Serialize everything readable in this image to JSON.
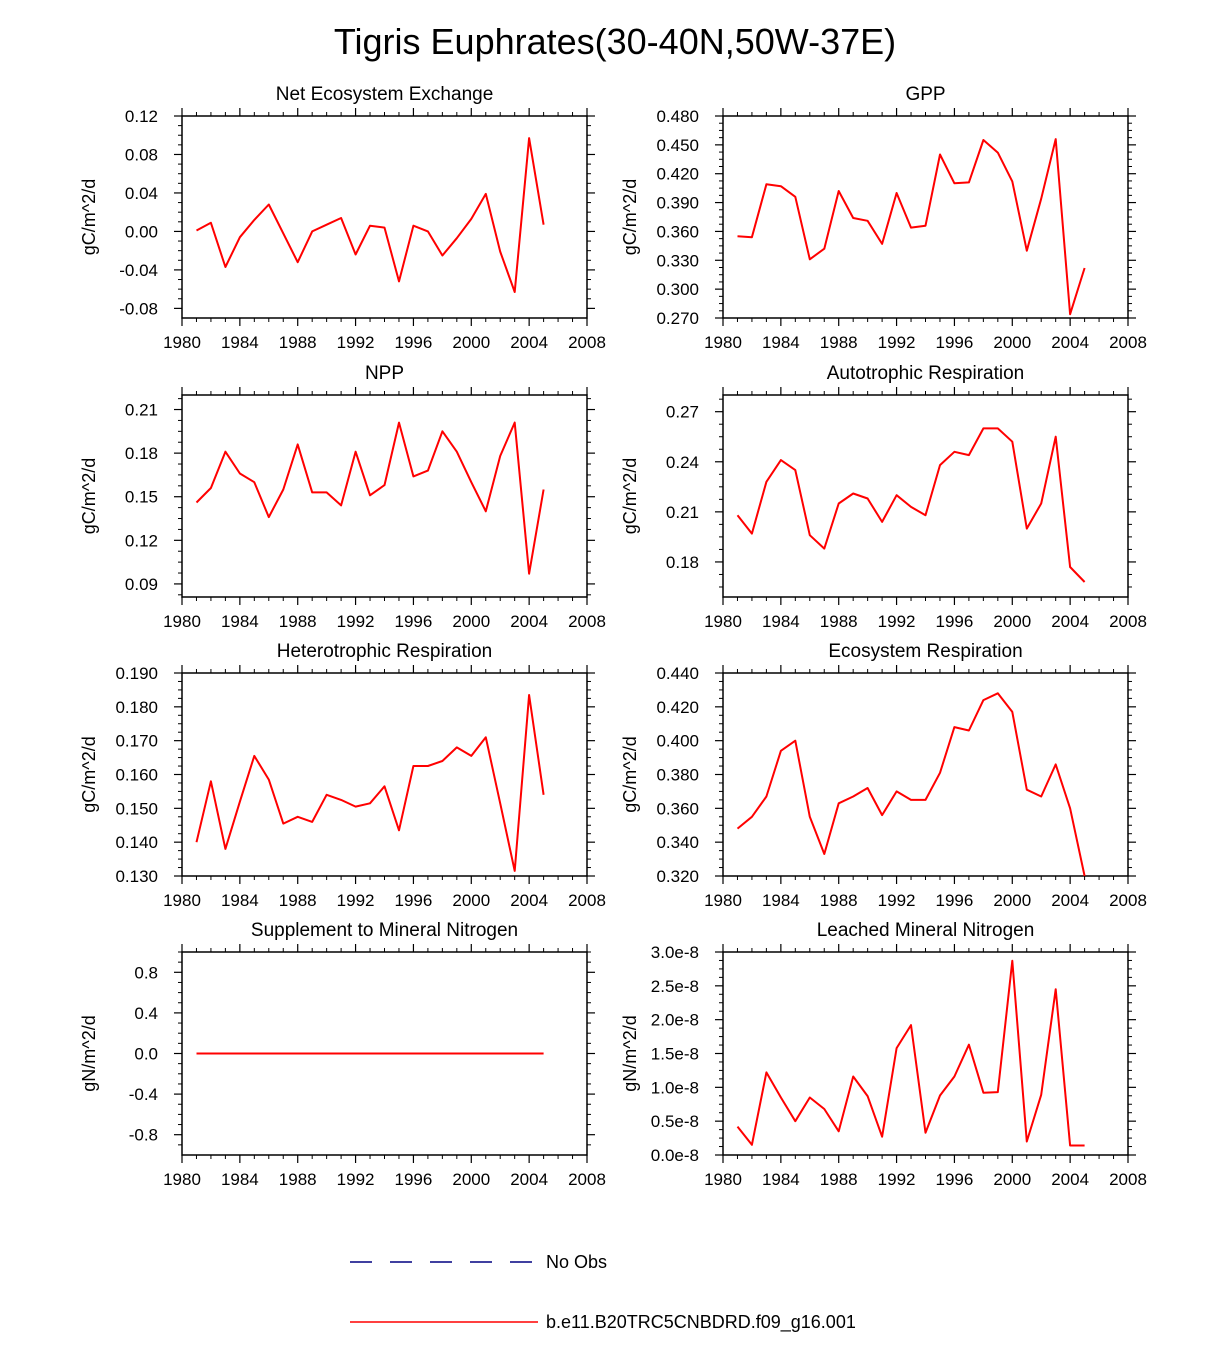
{
  "figure_title": "Tigris Euphrates(30-40N,50W-37E)",
  "legend": [
    {
      "label": "No Obs",
      "color": "#000080",
      "dash": true
    },
    {
      "label": "b.e11.B20TRC5CNBDRD.f09_g16.001",
      "color": "#ff0000",
      "dash": false
    }
  ],
  "chart_data": [
    {
      "type": "line",
      "title": "Net Ecosystem Exchange",
      "ylabel": "gC/m^2/d",
      "xlim": [
        1980,
        2008
      ],
      "xticks": [
        1980,
        1984,
        1988,
        1992,
        1996,
        2000,
        2004,
        2008
      ],
      "ylim": [
        -0.09,
        0.12
      ],
      "yticks": [
        -0.08,
        -0.04,
        0.0,
        0.04,
        0.08,
        0.12
      ],
      "ytick_labels": [
        "-0.08",
        "-0.04",
        "0.00",
        "0.04",
        "0.08",
        "0.12"
      ],
      "series": [
        {
          "name": "b.e11.B20TRC5CNBDRD.f09_g16.001",
          "color": "#ff0000",
          "x": [
            1981,
            1982,
            1983,
            1984,
            1985,
            1986,
            1987,
            1988,
            1989,
            1990,
            1991,
            1992,
            1993,
            1994,
            1995,
            1996,
            1997,
            1998,
            1999,
            2000,
            2001,
            2002,
            2003,
            2004,
            2005
          ],
          "y": [
            0.001,
            0.009,
            -0.037,
            -0.006,
            0.012,
            0.028,
            -0.002,
            -0.032,
            0.0,
            0.007,
            0.014,
            -0.024,
            0.006,
            0.004,
            -0.052,
            0.006,
            0.0,
            -0.025,
            -0.007,
            0.013,
            0.039,
            -0.021,
            -0.063,
            0.097,
            0.007
          ]
        }
      ]
    },
    {
      "type": "line",
      "title": "GPP",
      "ylabel": "gC/m^2/d",
      "xlim": [
        1980,
        2008
      ],
      "xticks": [
        1980,
        1984,
        1988,
        1992,
        1996,
        2000,
        2004,
        2008
      ],
      "ylim": [
        0.27,
        0.48
      ],
      "yticks": [
        0.27,
        0.3,
        0.33,
        0.36,
        0.39,
        0.42,
        0.45,
        0.48
      ],
      "ytick_labels": [
        "0.270",
        "0.300",
        "0.330",
        "0.360",
        "0.390",
        "0.420",
        "0.450",
        "0.480"
      ],
      "series": [
        {
          "name": "b.e11.B20TRC5CNBDRD.f09_g16.001",
          "color": "#ff0000",
          "x": [
            1981,
            1982,
            1983,
            1984,
            1985,
            1986,
            1987,
            1988,
            1989,
            1990,
            1991,
            1992,
            1993,
            1994,
            1995,
            1996,
            1997,
            1998,
            1999,
            2000,
            2001,
            2002,
            2003,
            2004,
            2005
          ],
          "y": [
            0.355,
            0.354,
            0.409,
            0.407,
            0.396,
            0.331,
            0.342,
            0.402,
            0.374,
            0.371,
            0.347,
            0.4,
            0.364,
            0.366,
            0.44,
            0.41,
            0.411,
            0.455,
            0.442,
            0.412,
            0.34,
            0.394,
            0.456,
            0.274,
            0.322
          ]
        }
      ]
    },
    {
      "type": "line",
      "title": "NPP",
      "ylabel": "gC/m^2/d",
      "xlim": [
        1980,
        2008
      ],
      "xticks": [
        1980,
        1984,
        1988,
        1992,
        1996,
        2000,
        2004,
        2008
      ],
      "ylim": [
        0.081,
        0.22
      ],
      "yticks": [
        0.09,
        0.12,
        0.15,
        0.18,
        0.21
      ],
      "ytick_labels": [
        "0.09",
        "0.12",
        "0.15",
        "0.18",
        "0.21"
      ],
      "series": [
        {
          "name": "b.e11.B20TRC5CNBDRD.f09_g16.001",
          "color": "#ff0000",
          "x": [
            1981,
            1982,
            1983,
            1984,
            1985,
            1986,
            1987,
            1988,
            1989,
            1990,
            1991,
            1992,
            1993,
            1994,
            1995,
            1996,
            1997,
            1998,
            1999,
            2000,
            2001,
            2002,
            2003,
            2004,
            2005
          ],
          "y": [
            0.146,
            0.156,
            0.181,
            0.166,
            0.16,
            0.136,
            0.155,
            0.186,
            0.153,
            0.153,
            0.144,
            0.181,
            0.151,
            0.158,
            0.201,
            0.164,
            0.168,
            0.195,
            0.181,
            0.16,
            0.14,
            0.178,
            0.201,
            0.097,
            0.155
          ]
        }
      ]
    },
    {
      "type": "line",
      "title": "Autotrophic Respiration",
      "ylabel": "gC/m^2/d",
      "xlim": [
        1980,
        2008
      ],
      "xticks": [
        1980,
        1984,
        1988,
        1992,
        1996,
        2000,
        2004,
        2008
      ],
      "ylim": [
        0.159,
        0.28
      ],
      "yticks": [
        0.18,
        0.21,
        0.24,
        0.27
      ],
      "ytick_labels": [
        "0.18",
        "0.21",
        "0.24",
        "0.27"
      ],
      "series": [
        {
          "name": "b.e11.B20TRC5CNBDRD.f09_g16.001",
          "color": "#ff0000",
          "x": [
            1981,
            1982,
            1983,
            1984,
            1985,
            1986,
            1987,
            1988,
            1989,
            1990,
            1991,
            1992,
            1993,
            1994,
            1995,
            1996,
            1997,
            1998,
            1999,
            2000,
            2001,
            2002,
            2003,
            2004,
            2005
          ],
          "y": [
            0.208,
            0.197,
            0.228,
            0.241,
            0.235,
            0.196,
            0.188,
            0.215,
            0.221,
            0.218,
            0.204,
            0.22,
            0.213,
            0.208,
            0.238,
            0.246,
            0.244,
            0.26,
            0.26,
            0.252,
            0.2,
            0.215,
            0.255,
            0.177,
            0.168
          ]
        }
      ]
    },
    {
      "type": "line",
      "title": "Heterotrophic Respiration",
      "ylabel": "gC/m^2/d",
      "xlim": [
        1980,
        2008
      ],
      "xticks": [
        1980,
        1984,
        1988,
        1992,
        1996,
        2000,
        2004,
        2008
      ],
      "ylim": [
        0.13,
        0.19
      ],
      "yticks": [
        0.13,
        0.14,
        0.15,
        0.16,
        0.17,
        0.18,
        0.19
      ],
      "ytick_labels": [
        "0.130",
        "0.140",
        "0.150",
        "0.160",
        "0.170",
        "0.180",
        "0.190"
      ],
      "series": [
        {
          "name": "b.e11.B20TRC5CNBDRD.f09_g16.001",
          "color": "#ff0000",
          "x": [
            1981,
            1982,
            1983,
            1984,
            1985,
            1986,
            1987,
            1988,
            1989,
            1990,
            1991,
            1992,
            1993,
            1994,
            1995,
            1996,
            1997,
            1998,
            1999,
            2000,
            2001,
            2002,
            2003,
            2004,
            2005
          ],
          "y": [
            0.14,
            0.158,
            0.138,
            0.152,
            0.1655,
            0.1585,
            0.1455,
            0.1475,
            0.146,
            0.154,
            0.1525,
            0.1505,
            0.1515,
            0.1565,
            0.1435,
            0.1625,
            0.1625,
            0.164,
            0.168,
            0.1655,
            0.171,
            0.1515,
            0.1315,
            0.1835,
            0.154
          ]
        }
      ]
    },
    {
      "type": "line",
      "title": "Ecosystem Respiration",
      "ylabel": "gC/m^2/d",
      "xlim": [
        1980,
        2008
      ],
      "xticks": [
        1980,
        1984,
        1988,
        1992,
        1996,
        2000,
        2004,
        2008
      ],
      "ylim": [
        0.32,
        0.44
      ],
      "yticks": [
        0.32,
        0.34,
        0.36,
        0.38,
        0.4,
        0.42,
        0.44
      ],
      "ytick_labels": [
        "0.320",
        "0.340",
        "0.360",
        "0.380",
        "0.400",
        "0.420",
        "0.440"
      ],
      "series": [
        {
          "name": "b.e11.B20TRC5CNBDRD.f09_g16.001",
          "color": "#ff0000",
          "x": [
            1981,
            1982,
            1983,
            1984,
            1985,
            1986,
            1987,
            1988,
            1989,
            1990,
            1991,
            1992,
            1993,
            1994,
            1995,
            1996,
            1997,
            1998,
            1999,
            2000,
            2001,
            2002,
            2003,
            2004,
            2005
          ],
          "y": [
            0.348,
            0.355,
            0.367,
            0.394,
            0.4,
            0.355,
            0.333,
            0.363,
            0.367,
            0.372,
            0.356,
            0.37,
            0.365,
            0.365,
            0.381,
            0.408,
            0.406,
            0.424,
            0.428,
            0.417,
            0.371,
            0.367,
            0.386,
            0.36,
            0.32
          ]
        }
      ]
    },
    {
      "type": "line",
      "title": "Supplement to Mineral Nitrogen",
      "ylabel": "gN/m^2/d",
      "xlim": [
        1980,
        2008
      ],
      "xticks": [
        1980,
        1984,
        1988,
        1992,
        1996,
        2000,
        2004,
        2008
      ],
      "ylim": [
        -1.0,
        1.0
      ],
      "yticks": [
        -0.8,
        -0.4,
        0.0,
        0.4,
        0.8
      ],
      "ytick_labels": [
        "-0.8",
        "-0.4",
        "0.0",
        "0.4",
        "0.8"
      ],
      "series": [
        {
          "name": "b.e11.B20TRC5CNBDRD.f09_g16.001",
          "color": "#ff0000",
          "x": [
            1981,
            1982,
            1983,
            1984,
            1985,
            1986,
            1987,
            1988,
            1989,
            1990,
            1991,
            1992,
            1993,
            1994,
            1995,
            1996,
            1997,
            1998,
            1999,
            2000,
            2001,
            2002,
            2003,
            2004,
            2005
          ],
          "y": [
            0,
            0,
            0,
            0,
            0,
            0,
            0,
            0,
            0,
            0,
            0,
            0,
            0,
            0,
            0,
            0,
            0,
            0,
            0,
            0,
            0,
            0,
            0,
            0,
            0
          ]
        }
      ]
    },
    {
      "type": "line",
      "title": "Leached Mineral Nitrogen",
      "ylabel": "gN/m^2/d",
      "xlim": [
        1980,
        2008
      ],
      "xticks": [
        1980,
        1984,
        1988,
        1992,
        1996,
        2000,
        2004,
        2008
      ],
      "ylim": [
        0.0,
        3e-08
      ],
      "yticks": [
        0.0,
        5e-09,
        1e-08,
        1.5e-08,
        2e-08,
        2.5e-08,
        3e-08
      ],
      "ytick_labels": [
        "0.0e-8",
        "0.5e-8",
        "1.0e-8",
        "1.5e-8",
        "2.0e-8",
        "2.5e-8",
        "3.0e-8"
      ],
      "series": [
        {
          "name": "b.e11.B20TRC5CNBDRD.f09_g16.001",
          "color": "#ff0000",
          "x": [
            1981,
            1982,
            1983,
            1984,
            1985,
            1986,
            1987,
            1988,
            1989,
            1990,
            1991,
            1992,
            1993,
            1994,
            1995,
            1996,
            1997,
            1998,
            1999,
            2000,
            2001,
            2002,
            2003,
            2004,
            2005
          ],
          "y": [
            4.2e-09,
            1.5e-09,
            1.22e-08,
            8.5e-09,
            5e-09,
            8.5e-09,
            6.8e-09,
            3.5e-09,
            1.16e-08,
            8.7e-09,
            2.7e-09,
            1.58e-08,
            1.92e-08,
            3.3e-09,
            8.8e-09,
            1.16e-08,
            1.63e-08,
            9.2e-09,
            9.3e-09,
            2.87e-08,
            2e-09,
            8.9e-09,
            2.45e-08,
            1.4e-09,
            1.4e-09
          ]
        }
      ]
    }
  ]
}
